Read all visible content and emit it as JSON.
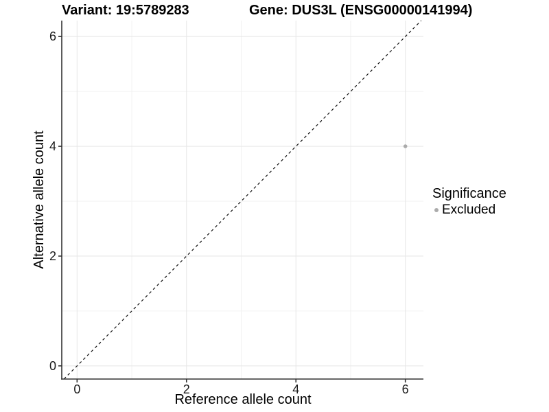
{
  "titles": {
    "variant": "Variant: 19:5789283",
    "gene": "Gene: DUS3L (ENSG00000141994)"
  },
  "legend": {
    "title": "Significance",
    "items": [
      {
        "label": "Excluded",
        "color": "#ababab"
      }
    ]
  },
  "chart_data": {
    "type": "scatter",
    "title": "Variant: 19:5789283    Gene: DUS3L (ENSG00000141994)",
    "xlabel": "Reference allele count",
    "ylabel": "Alternative allele count",
    "xlim": [
      -0.28,
      6.33
    ],
    "ylim": [
      -0.24,
      6.29
    ],
    "x_ticks": [
      0,
      2,
      4,
      6
    ],
    "x_minor_ticks": [
      1,
      3,
      5
    ],
    "y_ticks": [
      0,
      2,
      4,
      6
    ],
    "y_minor_ticks": [
      1,
      3,
      5
    ],
    "grid": "on",
    "legend_position": "right",
    "reference_line": {
      "type": "identity",
      "slope": 1,
      "intercept": 0,
      "style": "dashed",
      "color": "#111111"
    },
    "series": [
      {
        "name": "Excluded",
        "color": "#ababab",
        "marker": "circle",
        "points": [
          [
            6,
            4
          ]
        ]
      }
    ],
    "colors": {
      "grid_major": "#e8e8e8",
      "grid_minor": "#f2f2f2",
      "axis_line": "#333333",
      "tick_text": "#1a1a1a",
      "axis_title": "#000000"
    }
  }
}
